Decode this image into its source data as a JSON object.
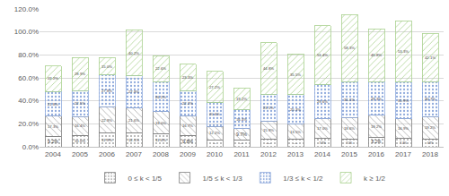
{
  "chart_data": {
    "type": "bar",
    "stacked": true,
    "data_labels": true,
    "grid": true,
    "legend": "bottom",
    "categories": [
      "2004",
      "2005",
      "2006",
      "2007",
      "2008",
      "2009",
      "2010",
      "2011",
      "2012",
      "2013",
      "2014",
      "2015",
      "2016",
      "2017",
      "2018"
    ],
    "ylim": [
      0,
      120
    ],
    "yticks": [
      {
        "value": 0,
        "label": "0.0%"
      },
      {
        "value": 20,
        "label": "20.0%"
      },
      {
        "value": 40,
        "label": "40.0%"
      },
      {
        "value": 60,
        "label": "60.0%"
      },
      {
        "value": 80,
        "label": "80.0%"
      },
      {
        "value": 100,
        "label": "100.0%"
      },
      {
        "value": 120,
        "label": "120.0%"
      }
    ],
    "series": [
      {
        "name": "0 ≤ k < 1/5",
        "color": "#f2f2f2",
        "values": [
          9.2,
          10.0,
          11.9,
          12.1,
          11.4,
          9.8,
          5.7,
          5.9,
          6.6,
          6.4,
          7.3,
          7.0,
          8.2,
          7.4,
          6.8
        ],
        "value_labels": [
          "9.2%",
          "10.0%",
          "11.9%",
          "12.1%",
          "11.4%",
          "9.8%",
          "5.7%",
          "5.9%",
          "6.6%",
          "6.4%",
          "7.3%",
          "7.0%",
          "8.2%",
          "7.4%",
          "6.8%"
        ]
      },
      {
        "name": "1/5 ≤ k < 1/3",
        "color": "#d9d9d9",
        "values": [
          17.3,
          16.4,
          22.9,
          21.6,
          19.0,
          16.7,
          12.2,
          9.7,
          15.9,
          13.5,
          17.0,
          18.6,
          19.2,
          16.9,
          19.2
        ],
        "value_labels": [
          "17.3%",
          "16.4%",
          "22.9%",
          "21.6%",
          "19.0%",
          "16.7%",
          "12.2%",
          "9.7%",
          "15.9%",
          "13.5%",
          "17.0%",
          "18.6%",
          "19.2%",
          "16.9%",
          "19.2%"
        ]
      },
      {
        "name": "1/3 ≤ k < 1/2",
        "color": "#dae3f3",
        "values": [
          21.8,
          22.5,
          27.8,
          27.9,
          26.2,
          22.2,
          20.6,
          16.4,
          23.1,
          25.3,
          29.6,
          31.1,
          29.3,
          31.9,
          30.7
        ],
        "value_labels": [
          "21.8%",
          "22.5%",
          "27.8%",
          "27.9%",
          "26.2%",
          "22.2%",
          "20.6%",
          "16.4%",
          "23.1%",
          "25.3%",
          "29.6%",
          "31.1%",
          "29.3%",
          "31.9%",
          "30.7%"
        ]
      },
      {
        "name": "k ≥ 1/2",
        "color": "#e2f0d9",
        "values": [
          22.2,
          28.9,
          15.0,
          40.2,
          22.6,
          23.3,
          27.2,
          19.2,
          44.8,
          35.5,
          51.4,
          58.3,
          45.8,
          53.3,
          42.1
        ],
        "value_labels": [
          "22.2%",
          "28.9%",
          "15.0%",
          "40.2%",
          "22.6%",
          "23.3%",
          "27.2%",
          "19.2%",
          "44.8%",
          "35.5%",
          "51.4%",
          "58.3%",
          "45.8%",
          "53.3%",
          "42.1%"
        ]
      }
    ]
  }
}
